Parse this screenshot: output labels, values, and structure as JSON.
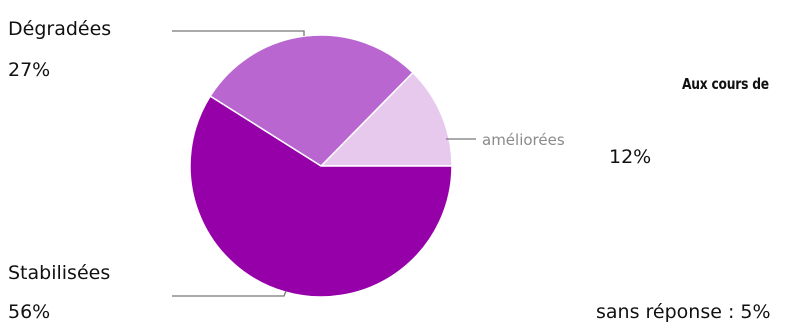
{
  "chart_data": {
    "type": "pie",
    "title": "Aux cours de",
    "slices": [
      {
        "label": "améliorées",
        "value": 12,
        "color": "#e8c9ee"
      },
      {
        "label": "Dégradées",
        "value": 27,
        "color": "#b966d0"
      },
      {
        "label": "Stabilisées",
        "value": 56,
        "color": "#9600a9"
      }
    ],
    "percent_labels": {
      "degradees": "27%",
      "stabilisees": "56%",
      "ameliorees": "12%"
    },
    "extra_note": "sans réponse : 5%"
  }
}
